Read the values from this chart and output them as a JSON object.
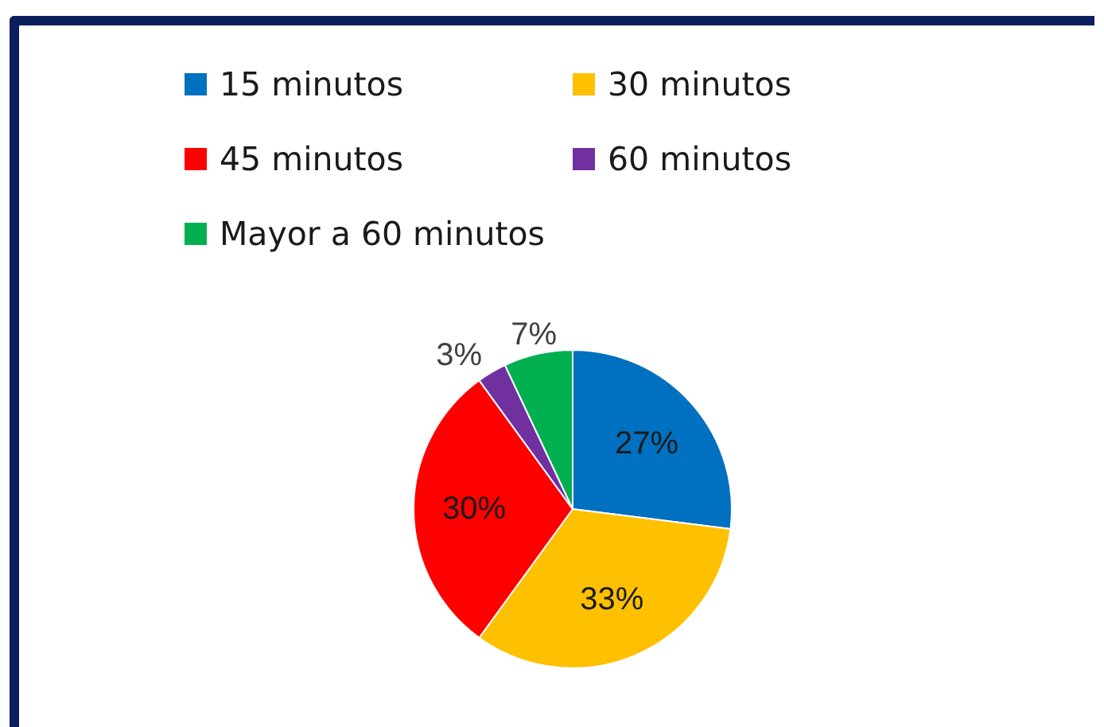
{
  "chart_data": {
    "type": "pie",
    "categories": [
      "15 minutos",
      "30 minutos",
      "45 minutos",
      "60 minutos",
      "Mayor a 60 minutos"
    ],
    "values": [
      27,
      33,
      30,
      3,
      7
    ],
    "colors": [
      "#0070c0",
      "#ffc000",
      "#ff0000",
      "#7030a0",
      "#00b050"
    ],
    "value_labels": [
      "27%",
      "33%",
      "30%",
      "3%",
      "7%"
    ],
    "legend": "top"
  }
}
